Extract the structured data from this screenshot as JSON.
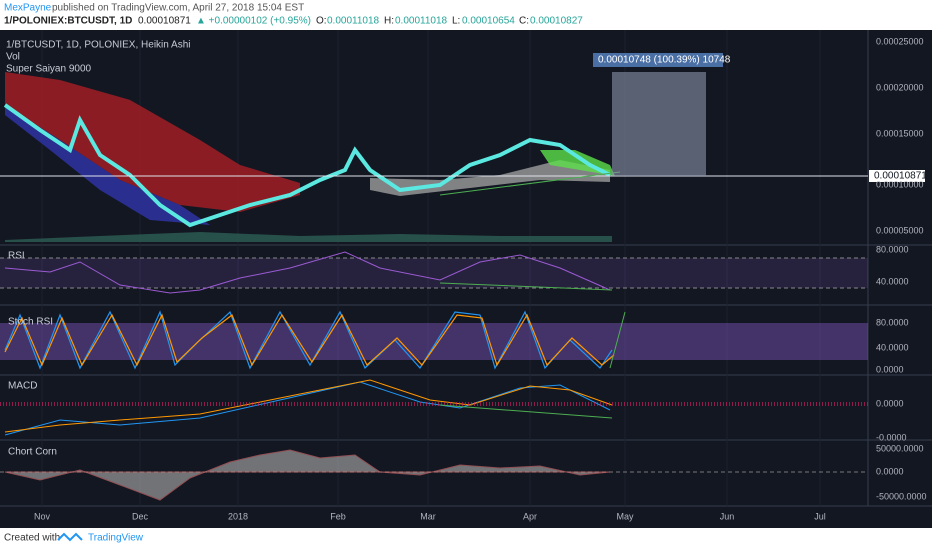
{
  "header": {
    "author": "MexPayne",
    "published": " published on TradingView.com, April 27, 2018 15:04 EST",
    "symbol": "1/POLONIEX:BTCUSDT, 1D",
    "last": "0.00010871",
    "change": "▲ +0.00000102 (+0.95%)",
    "open_label": "O:",
    "open": "0.00011018",
    "high_label": "H:",
    "high": "0.00011018",
    "low_label": "L:",
    "low": "0.00010654",
    "close_label": "C:",
    "close": "0.00010827"
  },
  "main_panel": {
    "legend": [
      "1/BTCUSDT, 1D, POLONIEX, Heikin Ashi",
      "Vol",
      "Super Saiyan 9000"
    ],
    "axis_labels": [
      "0.00025000",
      "0.00020000",
      "0.00015000",
      "0.00010000",
      "0.00005000"
    ],
    "current_price": "0.00010871",
    "measure_label": "0.00010748 (100.39%) 10748"
  },
  "rsi_panel": {
    "title": "RSI",
    "axis_labels": [
      "80.0000",
      "40.0000"
    ]
  },
  "stoch_panel": {
    "title": "Stoch RSI",
    "axis_labels": [
      "80.0000",
      "40.0000",
      "0.0000"
    ]
  },
  "macd_panel": {
    "title": "MACD",
    "axis_labels": [
      "0.0000",
      "-0.0000"
    ]
  },
  "chort_panel": {
    "title": "Chort Corn",
    "axis_labels": [
      "50000.0000",
      "0.0000",
      "-50000.0000"
    ]
  },
  "time_axis": [
    "Nov",
    "Dec",
    "2018",
    "Feb",
    "Mar",
    "Apr",
    "May",
    "Jun",
    "Jul"
  ],
  "footer": {
    "created": "Created with",
    "brand": "TradingView"
  }
}
